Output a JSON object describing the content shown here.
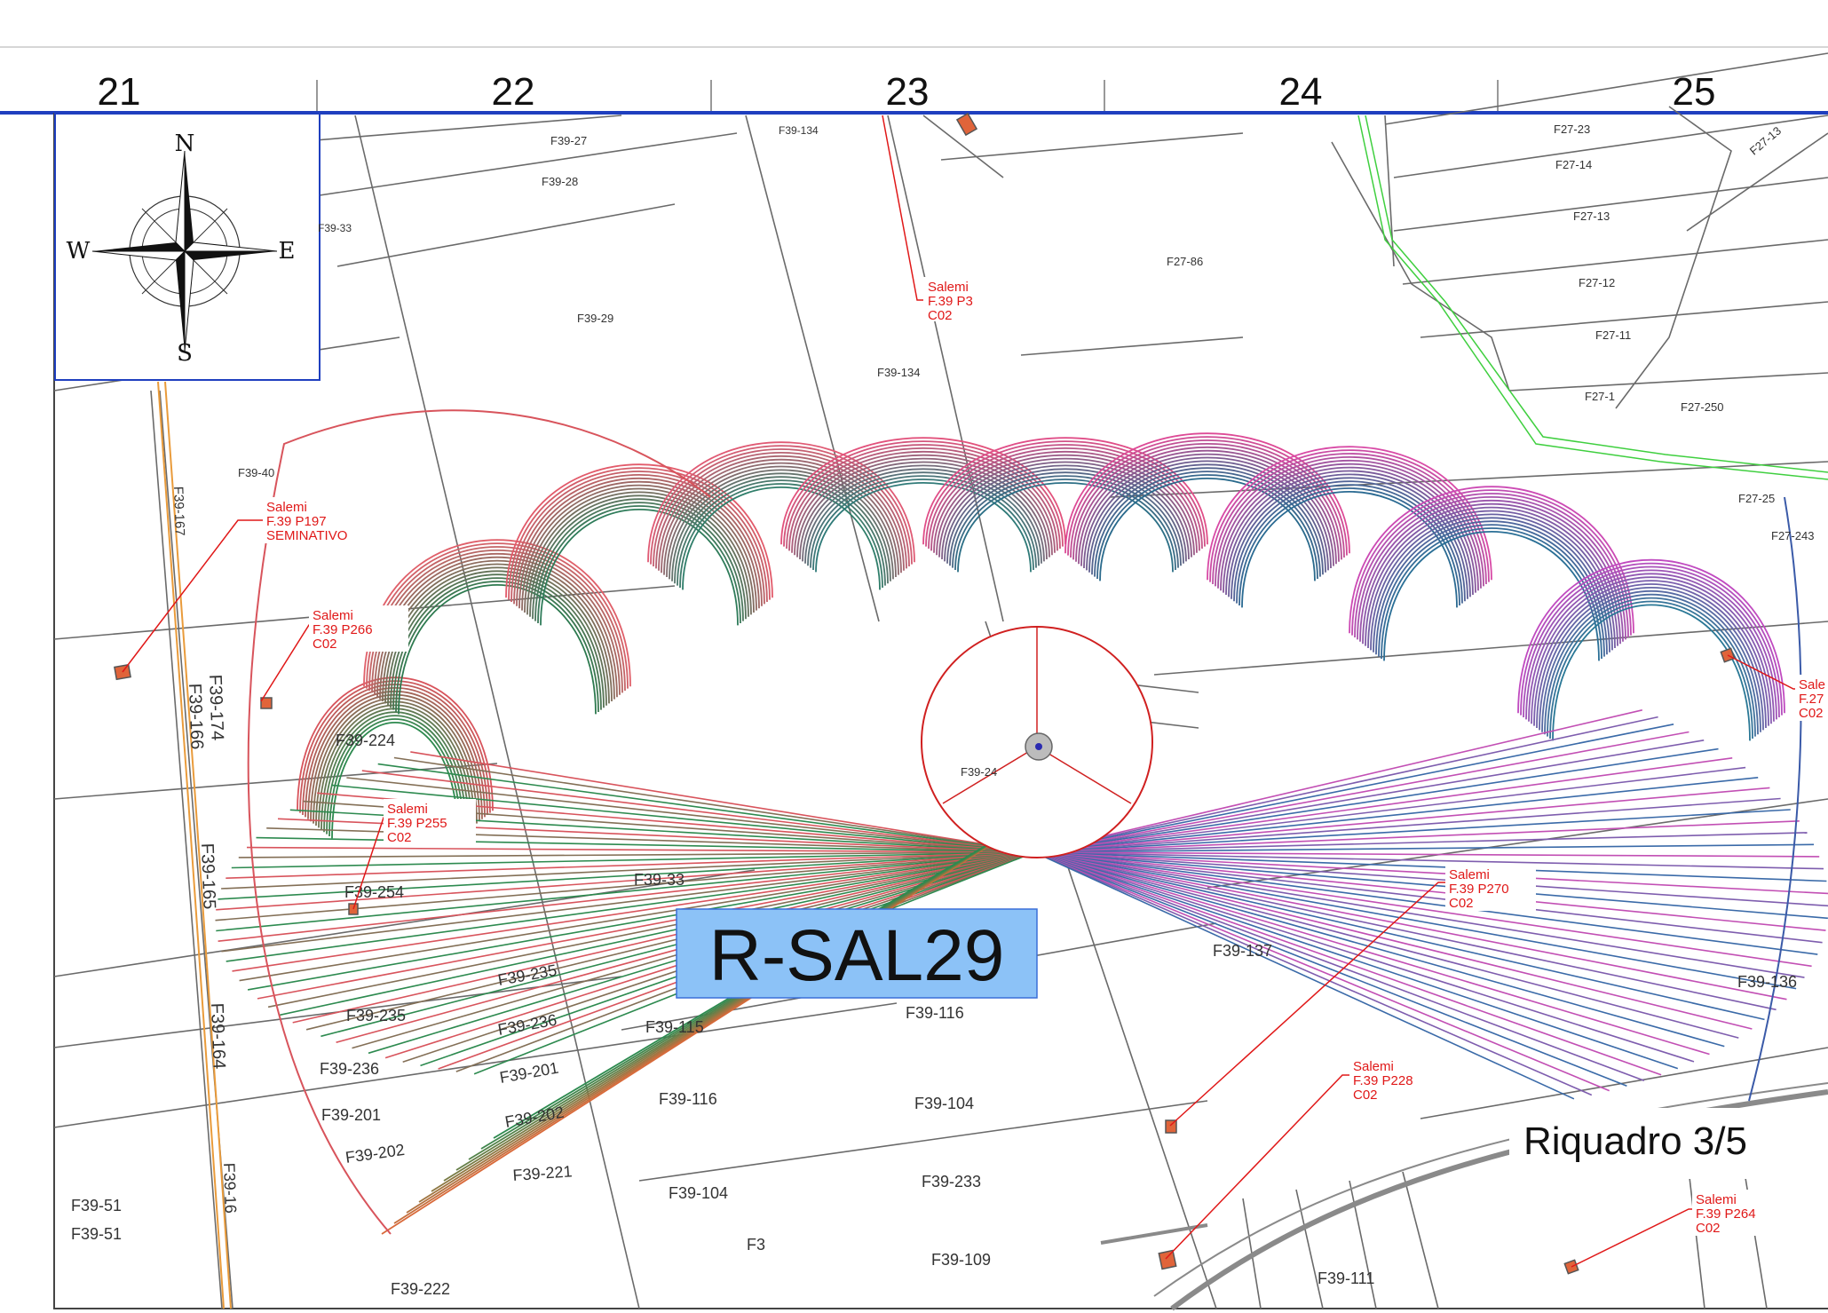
{
  "grid_columns": [
    "21",
    "22",
    "23",
    "24",
    "25"
  ],
  "compass": {
    "n": "N",
    "s": "S",
    "e": "E",
    "w": "W"
  },
  "turbine_label": "R-SAL29",
  "frame_label": "Riquadro 3/5",
  "callouts": [
    {
      "id": "c1",
      "lines": [
        "Salemi",
        "F.39 P3",
        "C02"
      ]
    },
    {
      "id": "c2",
      "lines": [
        "Salemi",
        "F.39 P197",
        "SEMINATIVO"
      ]
    },
    {
      "id": "c3",
      "lines": [
        "Salemi",
        "F.39 P266",
        "C02"
      ]
    },
    {
      "id": "c4",
      "lines": [
        "Salemi",
        "F.39 P255",
        "C02"
      ]
    },
    {
      "id": "c5",
      "lines": [
        "Salemi",
        "F.39 P270",
        "C02"
      ]
    },
    {
      "id": "c6",
      "lines": [
        "Salemi",
        "F.39 P228",
        "C02"
      ]
    },
    {
      "id": "c7",
      "lines": [
        "Salemi",
        "F.39 P264",
        "C02"
      ]
    },
    {
      "id": "c8",
      "lines": [
        "Sale",
        "F.27",
        "C02"
      ]
    }
  ],
  "parcels": {
    "p01": "F39-27",
    "p02": "F39-28",
    "p03": "F39-33",
    "p04": "F39-134",
    "p05": "F39-29",
    "p06": "F39-134",
    "p07": "F27-86",
    "p08": "F27-23",
    "p09": "F27-14",
    "p10": "F27-13",
    "p11": "F27-12",
    "p12": "F27-11",
    "p13": "F27-1",
    "p14": "F27-250",
    "p15": "F27-13",
    "p16": "F39-40",
    "p17": "F39-167",
    "p18": "F39-174",
    "p19": "F39-166",
    "p20": "F39-224",
    "p21": "F39-254",
    "p22": "F39-165",
    "p23": "F39-164",
    "p24": "F39-235",
    "p25": "F39-236",
    "p26": "F39-201",
    "p27": "F39-202",
    "p28": "F39-51",
    "p29": "F39-51",
    "p30": "F39-235",
    "p31": "F39-236",
    "p32": "F39-201",
    "p33": "F39-202",
    "p34": "F39-221",
    "p35": "F39-222",
    "p36": "F39-33",
    "p37": "F39-115",
    "p38": "F39-116",
    "p39": "F39-116",
    "p40": "F39-104",
    "p41": "F39-104",
    "p42": "F39-233",
    "p43": "F3",
    "p44": "F39-109",
    "p45": "F39-111",
    "p46": "F39-137",
    "p47": "F39-136",
    "p48": "F39-24",
    "p49": "F27-25",
    "p50": "F27-243",
    "p51": "F39-16"
  }
}
